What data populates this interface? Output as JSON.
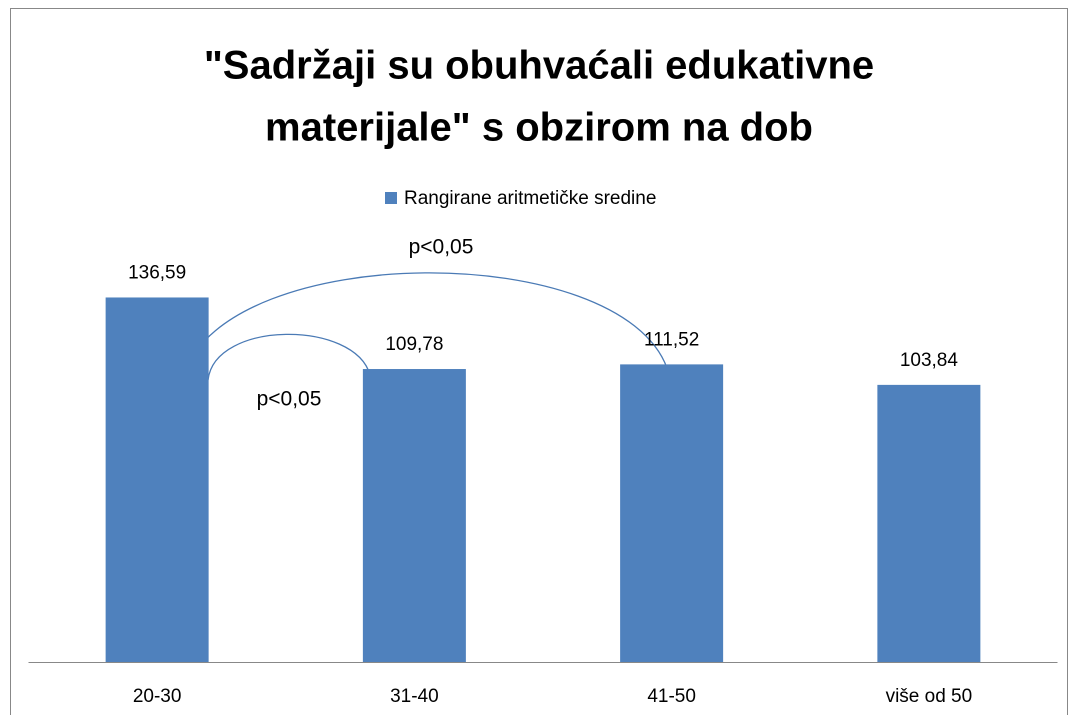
{
  "chart_data": {
    "type": "bar",
    "title": [
      "\"Sadržaji su obuhvaćali edukativne",
      "materijale\" s obzirom na dob"
    ],
    "categories": [
      "20-30",
      "31-40",
      "41-50",
      "više od 50"
    ],
    "series": [
      {
        "name": "Rangirane aritmetičke sredine",
        "color": "#4f81bd",
        "values": [
          136.59,
          109.78,
          111.52,
          103.84
        ],
        "value_labels": [
          "136,59",
          "109,78",
          "111,52",
          "103,84"
        ]
      }
    ],
    "ylim": [
      0,
      160
    ],
    "legend": "top",
    "annotations": [
      "p<0,05",
      "p<0,05"
    ]
  }
}
